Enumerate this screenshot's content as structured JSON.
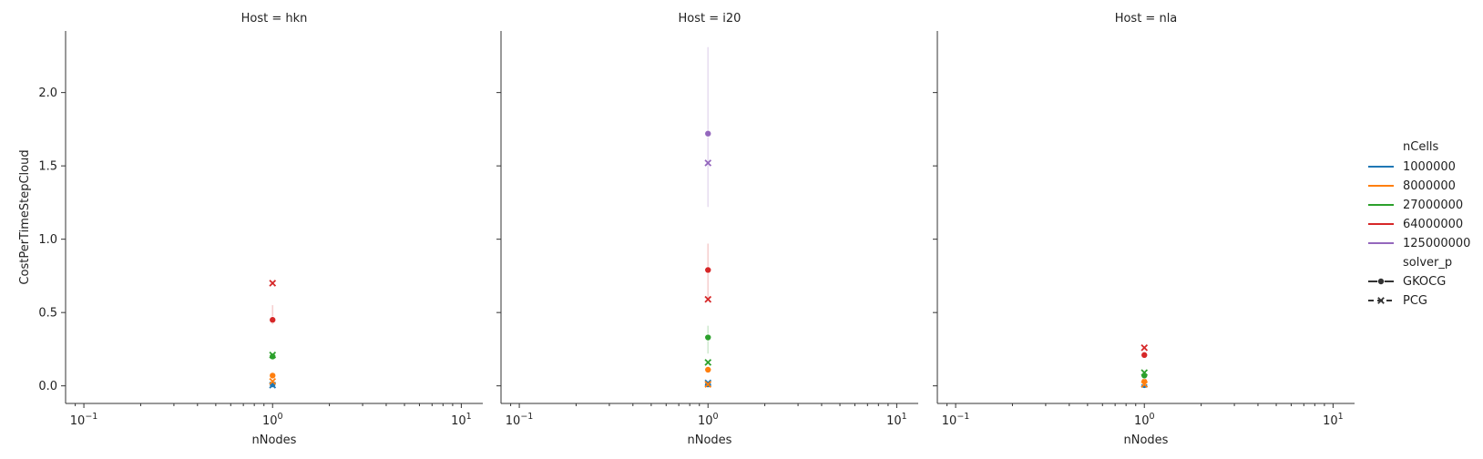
{
  "chart_data": {
    "type": "scatter",
    "xscale": "log",
    "xlim": [
      0.08,
      13
    ],
    "ylim": [
      -0.12,
      2.42
    ],
    "xlabel": "nNodes",
    "ylabel": "CostPerTimeStepCloud",
    "y_ticks": [
      "0.0",
      "0.5",
      "1.0",
      "1.5",
      "2.0"
    ],
    "y_tick_values": [
      0,
      0.5,
      1.0,
      1.5,
      2.0
    ],
    "x_ticks": [
      {
        "value": 0.1,
        "base": "10",
        "exp": "−1"
      },
      {
        "value": 1,
        "base": "10",
        "exp": "0"
      },
      {
        "value": 10,
        "base": "10",
        "exp": "1"
      }
    ],
    "colors": {
      "1000000": "#1f77b4",
      "8000000": "#ff7f0e",
      "27000000": "#2ca02c",
      "64000000": "#d62728",
      "125000000": "#9467bd"
    },
    "legend": {
      "placement": "right",
      "hue_title": "nCells",
      "hue_items": [
        "1000000",
        "8000000",
        "27000000",
        "64000000",
        "125000000"
      ],
      "style_title": "solver_p",
      "style_items": [
        {
          "label": "GKOCG",
          "marker": "circle"
        },
        {
          "label": "PCG",
          "marker": "x"
        }
      ]
    },
    "panels": [
      {
        "title": "Host = hkn",
        "points": [
          {
            "nCells": "1000000",
            "solver": "GKOCG",
            "x": 1,
            "y": 0.01
          },
          {
            "nCells": "1000000",
            "solver": "PCG",
            "x": 1,
            "y": 0.005
          },
          {
            "nCells": "8000000",
            "solver": "GKOCG",
            "x": 1,
            "y": 0.07
          },
          {
            "nCells": "8000000",
            "solver": "PCG",
            "x": 1,
            "y": 0.03
          },
          {
            "nCells": "27000000",
            "solver": "GKOCG",
            "x": 1,
            "y": 0.2
          },
          {
            "nCells": "27000000",
            "solver": "PCG",
            "x": 1,
            "y": 0.21
          },
          {
            "nCells": "64000000",
            "solver": "GKOCG",
            "x": 1,
            "y": 0.45,
            "err": [
              0.42,
              0.55
            ]
          },
          {
            "nCells": "64000000",
            "solver": "PCG",
            "x": 1,
            "y": 0.7
          }
        ]
      },
      {
        "title": "Host = i20",
        "points": [
          {
            "nCells": "1000000",
            "solver": "GKOCG",
            "x": 1,
            "y": 0.01
          },
          {
            "nCells": "1000000",
            "solver": "PCG",
            "x": 1,
            "y": 0.02
          },
          {
            "nCells": "8000000",
            "solver": "GKOCG",
            "x": 1,
            "y": 0.11
          },
          {
            "nCells": "8000000",
            "solver": "PCG",
            "x": 1,
            "y": 0.01
          },
          {
            "nCells": "27000000",
            "solver": "GKOCG",
            "x": 1,
            "y": 0.33,
            "err": [
              0.22,
              0.41
            ]
          },
          {
            "nCells": "27000000",
            "solver": "PCG",
            "x": 1,
            "y": 0.16
          },
          {
            "nCells": "64000000",
            "solver": "GKOCG",
            "x": 1,
            "y": 0.79,
            "err": [
              0.6,
              0.97
            ]
          },
          {
            "nCells": "64000000",
            "solver": "PCG",
            "x": 1,
            "y": 0.59
          },
          {
            "nCells": "125000000",
            "solver": "GKOCG",
            "x": 1,
            "y": 1.72,
            "err": [
              1.22,
              2.31
            ]
          },
          {
            "nCells": "125000000",
            "solver": "PCG",
            "x": 1,
            "y": 1.52
          }
        ]
      },
      {
        "title": "Host = nla",
        "points": [
          {
            "nCells": "1000000",
            "solver": "GKOCG",
            "x": 1,
            "y": 0.005
          },
          {
            "nCells": "1000000",
            "solver": "PCG",
            "x": 1,
            "y": 0.01
          },
          {
            "nCells": "8000000",
            "solver": "GKOCG",
            "x": 1,
            "y": 0.03
          },
          {
            "nCells": "8000000",
            "solver": "PCG",
            "x": 1,
            "y": 0.01
          },
          {
            "nCells": "27000000",
            "solver": "GKOCG",
            "x": 1,
            "y": 0.07
          },
          {
            "nCells": "27000000",
            "solver": "PCG",
            "x": 1,
            "y": 0.09
          },
          {
            "nCells": "64000000",
            "solver": "GKOCG",
            "x": 1,
            "y": 0.21
          },
          {
            "nCells": "64000000",
            "solver": "PCG",
            "x": 1,
            "y": 0.26
          }
        ]
      }
    ]
  }
}
